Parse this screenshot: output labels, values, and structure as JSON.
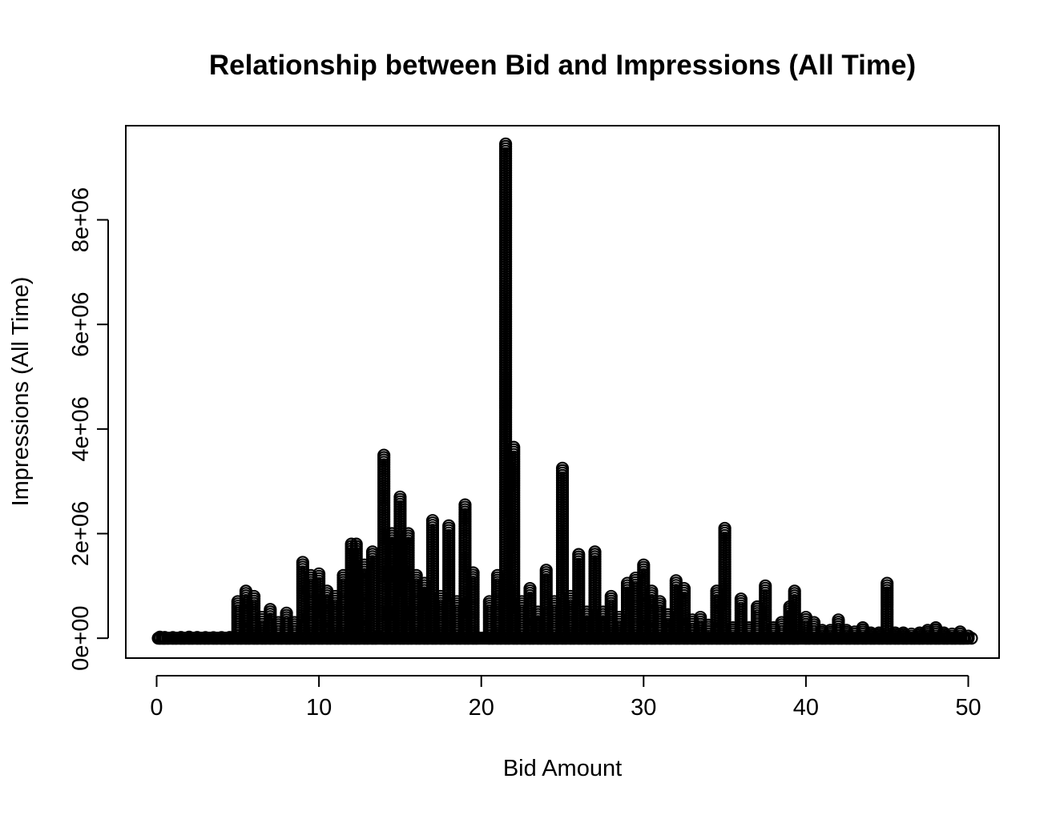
{
  "chart_data": {
    "type": "scatter",
    "title": "Relationship between Bid and Impressions (All Time)",
    "xlabel": "Bid Amount",
    "ylabel": "Impressions (All Time)",
    "xlim": [
      -1.9,
      51.9
    ],
    "ylim": [
      -380000,
      9800000
    ],
    "x_ticks": [
      0,
      10,
      20,
      30,
      40,
      50
    ],
    "x_tick_labels": [
      "0",
      "10",
      "20",
      "30",
      "40",
      "50"
    ],
    "y_ticks": [
      0,
      2000000,
      4000000,
      6000000,
      8000000
    ],
    "y_tick_labels": [
      "0e+00",
      "2e+06",
      "4e+06",
      "6e+06",
      "8e+06"
    ],
    "marker": "open-circle",
    "color": "#000000",
    "grid": false,
    "legend": "none",
    "columns": [
      [
        0.2,
        20000
      ],
      [
        0.5,
        15000
      ],
      [
        1.0,
        12000
      ],
      [
        1.5,
        15000
      ],
      [
        2.0,
        20000
      ],
      [
        2.5,
        15000
      ],
      [
        3.0,
        12000
      ],
      [
        3.5,
        10000
      ],
      [
        4.0,
        12000
      ],
      [
        4.5,
        15000
      ],
      [
        5.0,
        700000
      ],
      [
        5.5,
        900000
      ],
      [
        6.0,
        800000
      ],
      [
        6.5,
        400000
      ],
      [
        7.0,
        550000
      ],
      [
        7.5,
        300000
      ],
      [
        8.0,
        480000
      ],
      [
        8.5,
        300000
      ],
      [
        9.0,
        1450000
      ],
      [
        9.5,
        1200000
      ],
      [
        10.0,
        1230000
      ],
      [
        10.5,
        900000
      ],
      [
        11.0,
        800000
      ],
      [
        11.5,
        1200000
      ],
      [
        12.0,
        1800000
      ],
      [
        12.3,
        1800000
      ],
      [
        12.8,
        1400000
      ],
      [
        13.3,
        1650000
      ],
      [
        14.0,
        3500000
      ],
      [
        14.5,
        2000000
      ],
      [
        15.0,
        2700000
      ],
      [
        15.5,
        2000000
      ],
      [
        16.0,
        1200000
      ],
      [
        16.5,
        1050000
      ],
      [
        17.0,
        2250000
      ],
      [
        17.5,
        800000
      ],
      [
        18.0,
        2150000
      ],
      [
        18.5,
        700000
      ],
      [
        19.0,
        2550000
      ],
      [
        19.5,
        1250000
      ],
      [
        20.5,
        700000
      ],
      [
        21.0,
        1200000
      ],
      [
        21.5,
        9450000
      ],
      [
        22.0,
        3650000
      ],
      [
        22.5,
        700000
      ],
      [
        23.0,
        950000
      ],
      [
        23.5,
        500000
      ],
      [
        24.0,
        1300000
      ],
      [
        24.5,
        700000
      ],
      [
        25.0,
        3250000
      ],
      [
        25.5,
        800000
      ],
      [
        26.0,
        1600000
      ],
      [
        26.5,
        500000
      ],
      [
        27.0,
        1650000
      ],
      [
        27.5,
        500000
      ],
      [
        28.0,
        800000
      ],
      [
        28.5,
        400000
      ],
      [
        29.0,
        1050000
      ],
      [
        29.5,
        1150000
      ],
      [
        30.0,
        1400000
      ],
      [
        30.5,
        900000
      ],
      [
        31.0,
        700000
      ],
      [
        31.5,
        450000
      ],
      [
        32.0,
        1100000
      ],
      [
        32.5,
        950000
      ],
      [
        33.0,
        350000
      ],
      [
        33.5,
        400000
      ],
      [
        34.0,
        250000
      ],
      [
        34.5,
        900000
      ],
      [
        35.0,
        2100000
      ],
      [
        35.5,
        200000
      ],
      [
        36.0,
        750000
      ],
      [
        36.5,
        200000
      ],
      [
        37.0,
        600000
      ],
      [
        37.5,
        1000000
      ],
      [
        38.0,
        200000
      ],
      [
        38.5,
        300000
      ],
      [
        39.0,
        600000
      ],
      [
        39.3,
        900000
      ],
      [
        40.0,
        400000
      ],
      [
        40.5,
        300000
      ],
      [
        41.0,
        150000
      ],
      [
        41.5,
        150000
      ],
      [
        42.0,
        350000
      ],
      [
        42.5,
        150000
      ],
      [
        43.0,
        120000
      ],
      [
        43.5,
        200000
      ],
      [
        44.0,
        100000
      ],
      [
        44.5,
        100000
      ],
      [
        45.0,
        1050000
      ],
      [
        45.5,
        100000
      ],
      [
        46.0,
        100000
      ],
      [
        46.5,
        80000
      ],
      [
        47.0,
        100000
      ],
      [
        47.5,
        150000
      ],
      [
        48.0,
        200000
      ],
      [
        48.5,
        100000
      ],
      [
        49.0,
        80000
      ],
      [
        49.5,
        120000
      ],
      [
        50.0,
        40000
      ]
    ]
  }
}
